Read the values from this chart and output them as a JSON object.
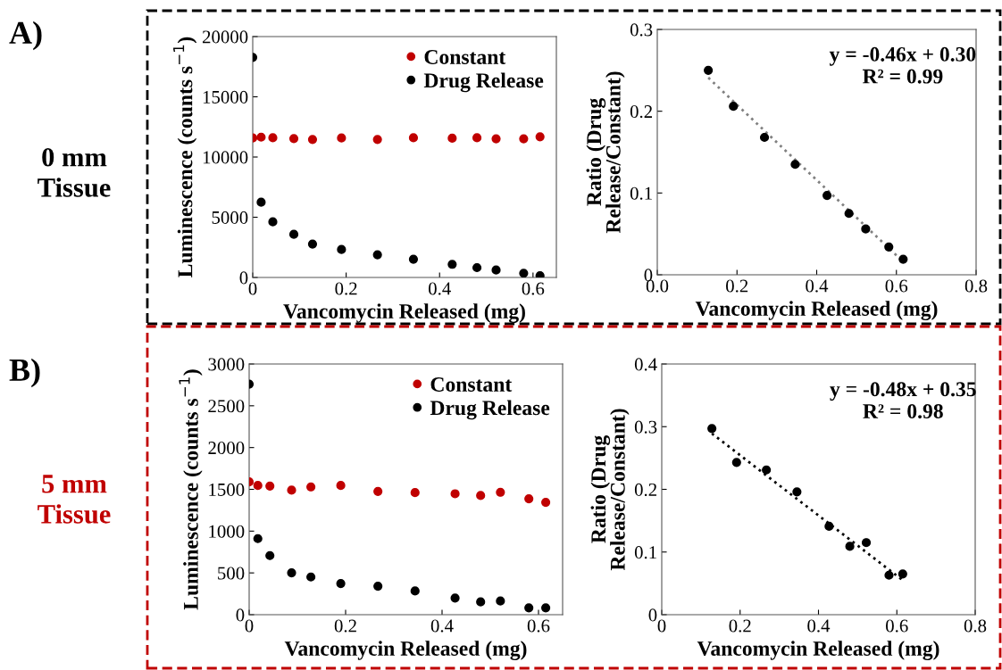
{
  "chart_data": [
    {
      "type": "scatter",
      "xlabel": "Vancomycin Released (mg)",
      "ylabel": "Luminescence (counts s$^{−1}$)",
      "annotations": [
        "A)",
        "0 mm\nTissue"
      ],
      "xlim": [
        0,
        0.65
      ],
      "xticks": [
        0,
        0.2,
        0.4,
        0.6
      ],
      "ylim": [
        0,
        20000
      ],
      "yticks": [
        0,
        5000,
        10000,
        15000,
        20000
      ],
      "grid": false,
      "legend": "top right",
      "marker": "circle",
      "x": [
        0,
        0.018,
        0.043,
        0.088,
        0.128,
        0.19,
        0.267,
        0.344,
        0.427,
        0.48,
        0.521,
        0.58,
        0.615
      ],
      "series": [
        {
          "name": "Constant",
          "color": "#c00000",
          "values": [
            11580,
            11650,
            11600,
            11530,
            11460,
            11580,
            11460,
            11600,
            11560,
            11600,
            11510,
            11510,
            11680
          ]
        },
        {
          "name": "Drug Release",
          "color": "#000000",
          "values": [
            18270,
            6250,
            4620,
            3580,
            2770,
            2320,
            1880,
            1510,
            1090,
            815,
            620,
            350,
            150
          ]
        }
      ]
    },
    {
      "type": "scatter",
      "xlabel": "Vancomycin Released (mg)",
      "ylabel": "Ratio (Drug\nRelease/Constant)",
      "annotations": [
        "y = -0.46x + 0.30\nR² = 0.99"
      ],
      "xlim": [
        0,
        0.8
      ],
      "xticks": [
        {
          "value": 0,
          "label": "0.0"
        },
        {
          "value": 0.2,
          "label": "0.2"
        },
        {
          "value": 0.4,
          "label": "0.4"
        },
        {
          "value": 0.6,
          "label": "0.6"
        },
        {
          "value": 0.8,
          "label": "0.8"
        }
      ],
      "ylim": [
        0,
        0.3
      ],
      "yticks": [
        0,
        0.1,
        0.2,
        0.3
      ],
      "grid": false,
      "marker": "circle",
      "series": [
        {
          "color": "#000000",
          "x": [
            0.128,
            0.191,
            0.269,
            0.346,
            0.426,
            0.481,
            0.523,
            0.581,
            0.617
          ],
          "values": [
            0.25,
            0.206,
            0.168,
            0.135,
            0.097,
            0.075,
            0.056,
            0.034,
            0.019
          ]
        },
        {
          "type": "line",
          "line_style": "dotted",
          "marker": "none",
          "color": "#808080",
          "x": [
            0.128,
            0.617
          ],
          "values": [
            0.241,
            0.016
          ]
        }
      ]
    },
    {
      "type": "scatter",
      "xlabel": "Vancomycin Released (mg)",
      "ylabel": "Luminescence (counts s$^{−1}$)",
      "annotations": [
        "B)",
        "5 mm\nTissue"
      ],
      "xlim": [
        0,
        0.65
      ],
      "xticks": [
        0,
        0.2,
        0.4,
        0.6
      ],
      "ylim": [
        0,
        3000
      ],
      "yticks": [
        0,
        500,
        1000,
        1500,
        2000,
        2500,
        3000
      ],
      "grid": false,
      "legend": "top right",
      "marker": "circle",
      "x": [
        0,
        0.018,
        0.043,
        0.088,
        0.128,
        0.19,
        0.267,
        0.344,
        0.427,
        0.48,
        0.521,
        0.58,
        0.615
      ],
      "series": [
        {
          "name": "Constant",
          "color": "#c00000",
          "values": [
            1589,
            1546,
            1539,
            1490,
            1529,
            1546,
            1475,
            1461,
            1447,
            1426,
            1465,
            1387,
            1344
          ]
        },
        {
          "name": "Drug Release",
          "color": "#000000",
          "values": [
            2759,
            910,
            707,
            501,
            451,
            373,
            341,
            284,
            199,
            153,
            164,
            82,
            82
          ]
        }
      ]
    },
    {
      "type": "scatter",
      "xlabel": "Vancomycin Released (mg)",
      "ylabel": "Ratio (Drug\nRelease/Constant)",
      "annotations": [
        "y = -0.48x + 0.35\nR² = 0.98"
      ],
      "xlim": [
        0,
        0.8
      ],
      "xticks": [
        0,
        0.2,
        0.4,
        0.6,
        0.8
      ],
      "ylim": [
        0,
        0.4
      ],
      "yticks": [
        0,
        0.1,
        0.2,
        0.3,
        0.4
      ],
      "grid": false,
      "marker": "circle",
      "series": [
        {
          "color": "#000000",
          "x": [
            0.128,
            0.191,
            0.267,
            0.345,
            0.427,
            0.48,
            0.522,
            0.58,
            0.615
          ],
          "values": [
            0.297,
            0.243,
            0.231,
            0.196,
            0.141,
            0.109,
            0.115,
            0.063,
            0.065
          ]
        },
        {
          "type": "line",
          "line_style": "dotted",
          "marker": "none",
          "color": "#000000",
          "x": [
            0.128,
            0.615
          ],
          "values": [
            0.289,
            0.055
          ]
        }
      ]
    }
  ]
}
